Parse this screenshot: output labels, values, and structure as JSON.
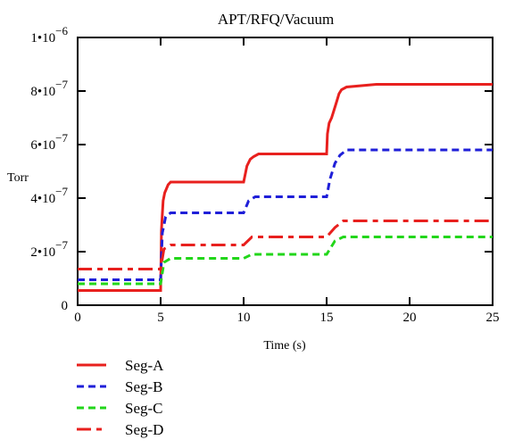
{
  "chart_data": {
    "type": "line",
    "title": "APT/RFQ/Vacuum",
    "xlabel": "Time (s)",
    "ylabel": "Torr",
    "xlim": [
      0,
      25
    ],
    "ylim": [
      0,
      1e-06
    ],
    "x_ticks": [
      0,
      5,
      10,
      15,
      20,
      25
    ],
    "x_tick_labels": [
      "0",
      "5",
      "10",
      "15",
      "20",
      "25"
    ],
    "y_ticks": [
      0,
      2e-07,
      4e-07,
      6e-07,
      8e-07,
      1e-06
    ],
    "y_tick_labels": [
      {
        "mantissa": "0",
        "exponent": ""
      },
      {
        "mantissa": "2•10",
        "exponent": "−7"
      },
      {
        "mantissa": "4•10",
        "exponent": "−7"
      },
      {
        "mantissa": "6•10",
        "exponent": "−7"
      },
      {
        "mantissa": "8•10",
        "exponent": "−7"
      },
      {
        "mantissa": "1•10",
        "exponent": "−6"
      }
    ],
    "grid": false,
    "legend_position": "bottom-left",
    "series": [
      {
        "name": "Seg-A",
        "color": "#e8201e",
        "dash": "solid",
        "x": [
          0,
          5,
          5.05,
          5.1,
          5.15,
          5.25,
          5.35,
          5.45,
          5.6,
          10,
          10.2,
          10.4,
          10.6,
          10.9,
          15,
          15.05,
          15.15,
          15.3,
          15.45,
          15.6,
          15.75,
          15.9,
          16.2,
          18,
          25
        ],
        "y": [
          5.5e-08,
          5.5e-08,
          2.8e-07,
          3.4e-07,
          3.9e-07,
          4.2e-07,
          4.35e-07,
          4.5e-07,
          4.6e-07,
          4.6e-07,
          5.2e-07,
          5.45e-07,
          5.55e-07,
          5.65e-07,
          5.65e-07,
          6.4e-07,
          6.8e-07,
          7e-07,
          7.3e-07,
          7.6e-07,
          7.9e-07,
          8.05e-07,
          8.15e-07,
          8.25e-07,
          8.25e-07
        ]
      },
      {
        "name": "Seg-B",
        "color": "#1f1fd8",
        "dash": "dashed",
        "x": [
          0,
          5,
          5.1,
          5.3,
          5.6,
          10,
          10.3,
          10.7,
          15,
          15.2,
          15.5,
          15.8,
          16.2,
          25
        ],
        "y": [
          9.5e-08,
          9.5e-08,
          2.7e-07,
          3.3e-07,
          3.45e-07,
          3.45e-07,
          3.9e-07,
          4.05e-07,
          4.05e-07,
          4.7e-07,
          5.3e-07,
          5.6e-07,
          5.8e-07,
          5.8e-07
        ]
      },
      {
        "name": "Seg-C",
        "color": "#22d61a",
        "dash": "dashed",
        "x": [
          0,
          5,
          5.2,
          5.6,
          10,
          10.5,
          15,
          15.5,
          16,
          25
        ],
        "y": [
          8e-08,
          8e-08,
          1.6e-07,
          1.75e-07,
          1.75e-07,
          1.9e-07,
          1.9e-07,
          2.4e-07,
          2.55e-07,
          2.55e-07
        ]
      },
      {
        "name": "Seg-D",
        "color": "#e8201e",
        "dash": "dashdot",
        "x": [
          0,
          5,
          5.2,
          5.6,
          10,
          10.5,
          15,
          15.5,
          16,
          25
        ],
        "y": [
          1.35e-07,
          1.35e-07,
          2.1e-07,
          2.25e-07,
          2.25e-07,
          2.55e-07,
          2.55e-07,
          2.9e-07,
          3.15e-07,
          3.15e-07
        ]
      }
    ]
  }
}
